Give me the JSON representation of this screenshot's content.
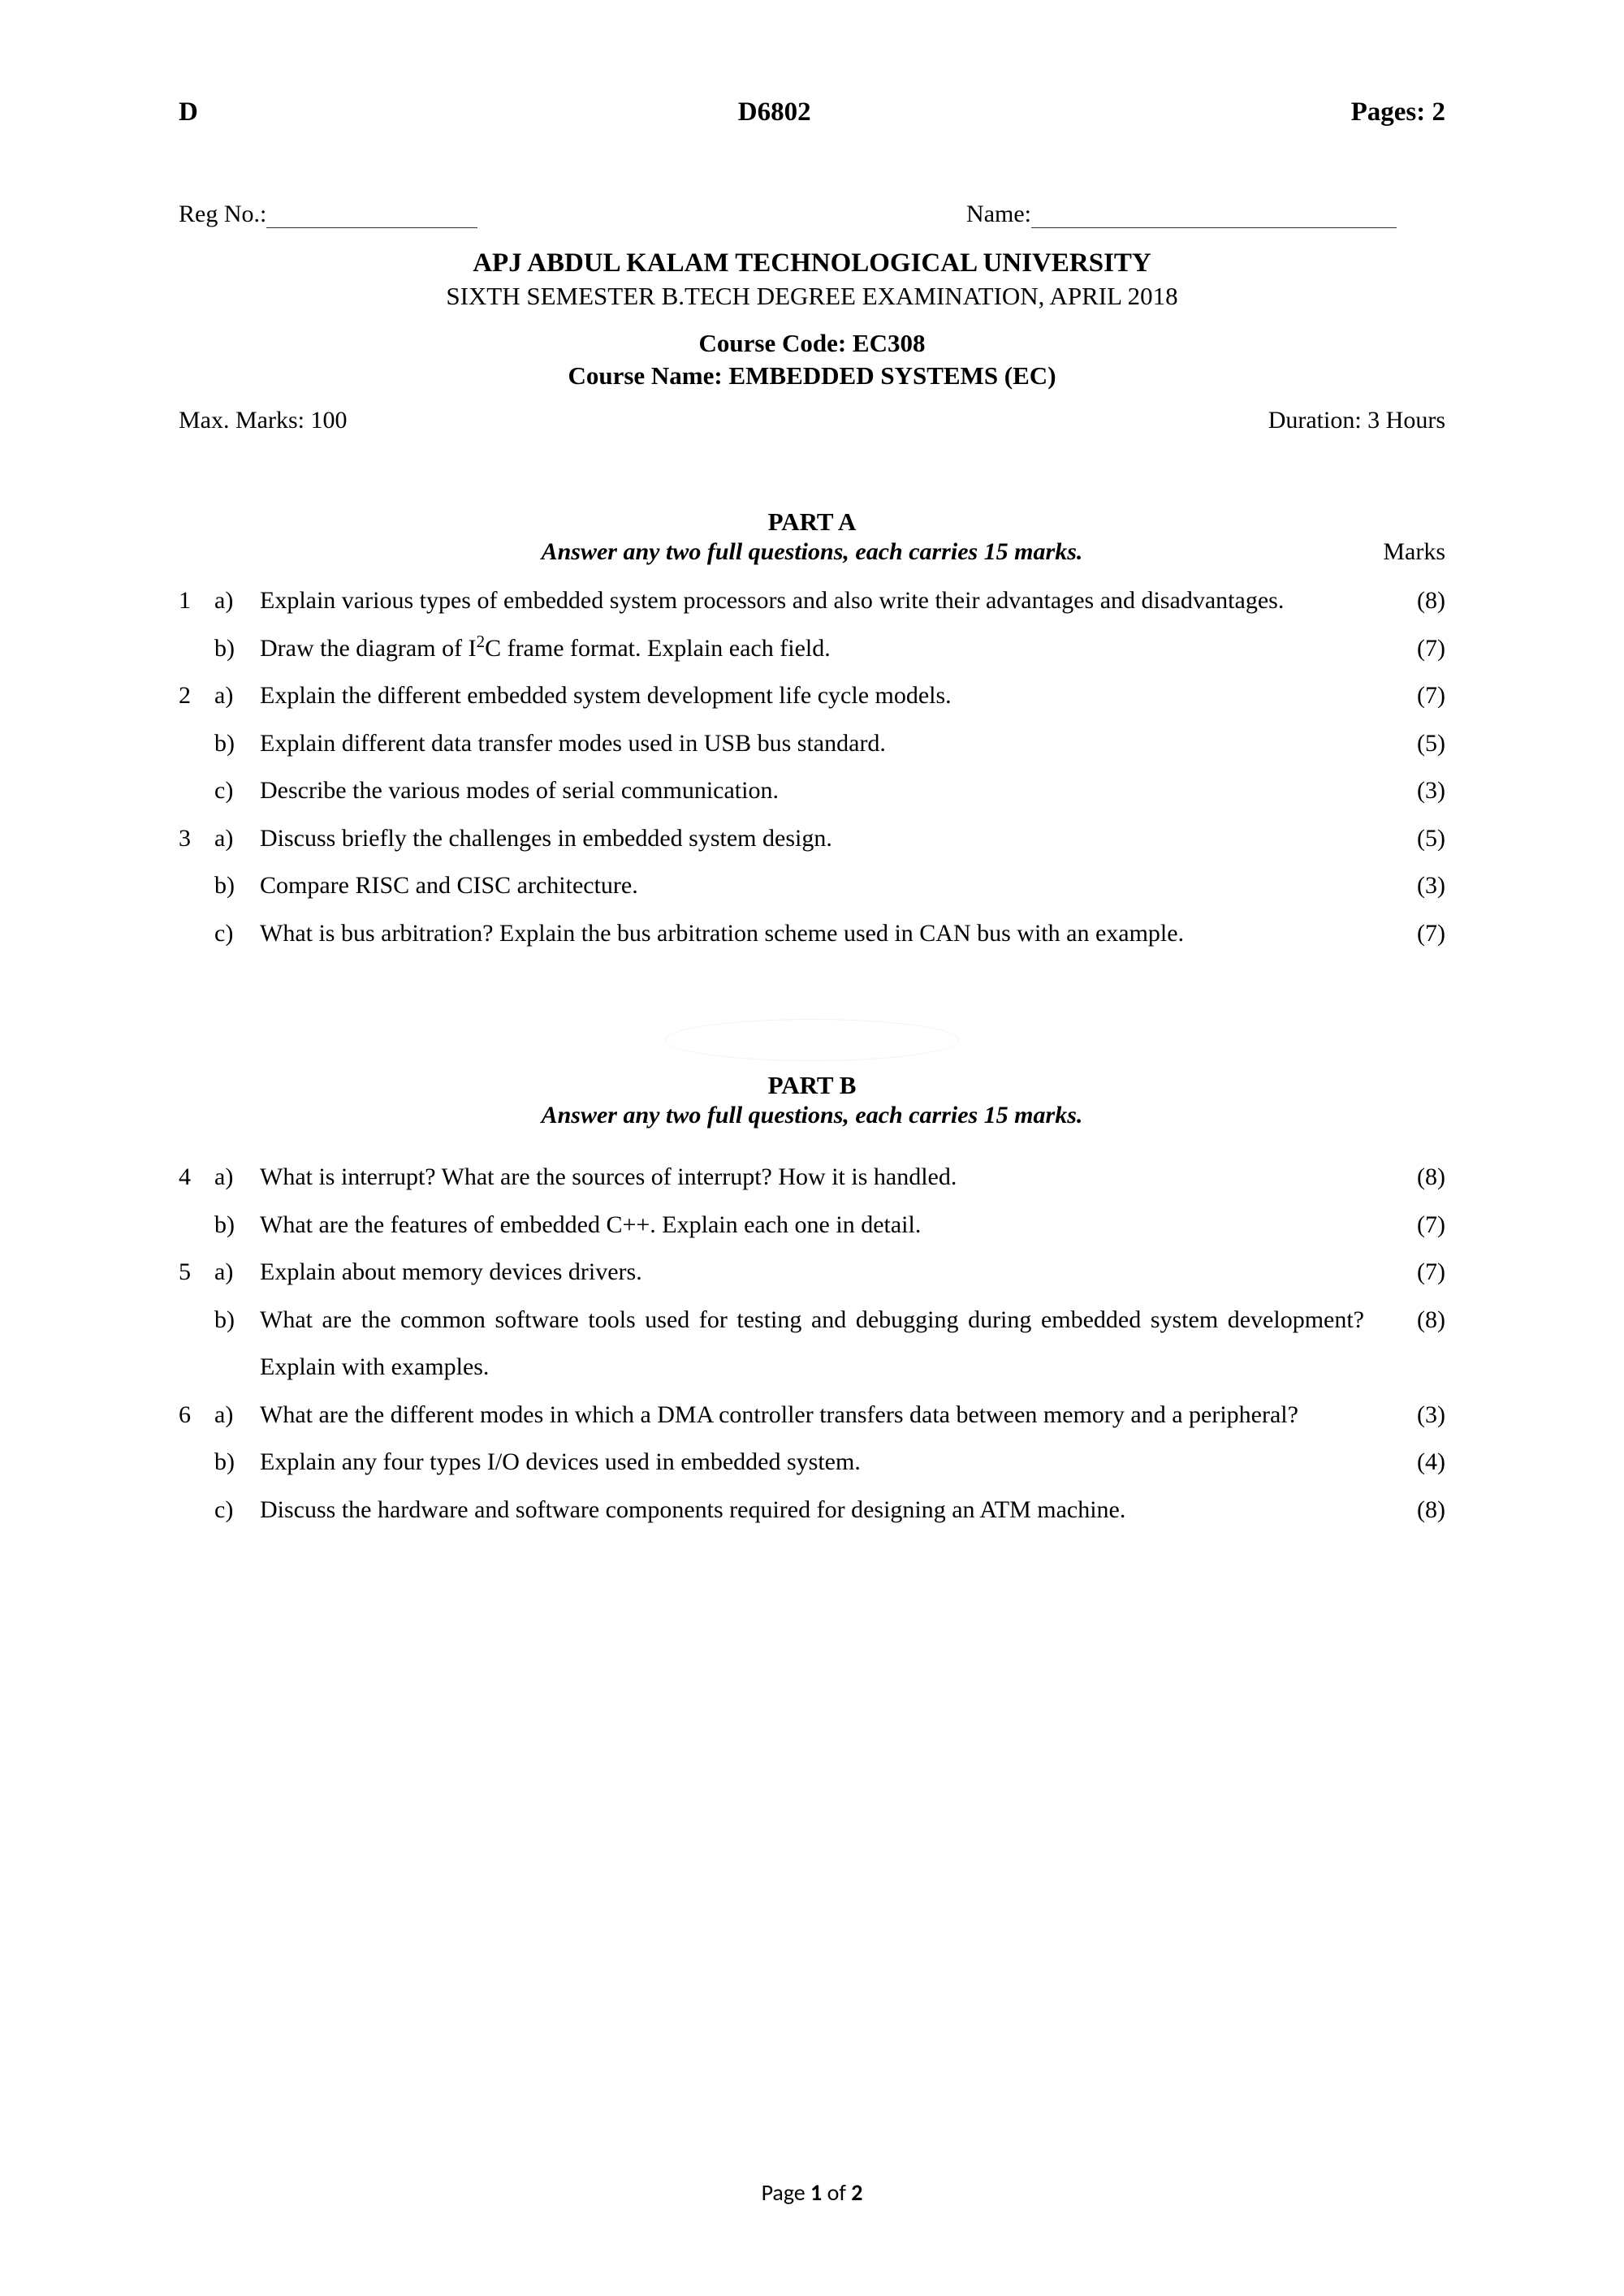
{
  "header": {
    "left": "D",
    "center": "D6802",
    "right": "Pages: 2"
  },
  "reg": {
    "reg_label": "Reg No.:",
    "name_label": "Name:"
  },
  "title": {
    "university": "APJ ABDUL KALAM TECHNOLOGICAL UNIVERSITY",
    "semester": "SIXTH SEMESTER B.TECH DEGREE EXAMINATION, APRIL 2018",
    "course_code": "Course Code: EC308",
    "course_name": "Course Name: EMBEDDED SYSTEMS (EC)"
  },
  "meta": {
    "max_marks": "Max. Marks: 100",
    "duration": "Duration: 3 Hours"
  },
  "partA": {
    "title": "PART A",
    "instr": "Answer any two full questions, each carries 15 marks.",
    "marks_label": "Marks",
    "questions": [
      {
        "num": "1",
        "subs": [
          {
            "sub": "a)",
            "text": "Explain various types of embedded system processors and also write their advantages and disadvantages.",
            "marks": "(8)"
          },
          {
            "sub": "b)",
            "text": "Draw the diagram of I²C frame format. Explain each field.",
            "marks": "(7)"
          }
        ]
      },
      {
        "num": "2",
        "subs": [
          {
            "sub": "a)",
            "text": "Explain the different embedded system development life cycle models.",
            "marks": "(7)"
          },
          {
            "sub": "b)",
            "text": "Explain different data transfer modes used in USB bus standard.",
            "marks": "(5)"
          },
          {
            "sub": "c)",
            "text": "Describe the various modes of serial communication.",
            "marks": "(3)"
          }
        ]
      },
      {
        "num": "3",
        "subs": [
          {
            "sub": "a)",
            "text": "Discuss briefly the challenges in embedded system design.",
            "marks": "(5)"
          },
          {
            "sub": "b)",
            "text": "Compare RISC and CISC architecture.",
            "marks": "(3)"
          },
          {
            "sub": "c)",
            "text": "What is bus arbitration? Explain the bus arbitration scheme used in CAN bus with an example.",
            "marks": "(7)"
          }
        ]
      }
    ]
  },
  "partB": {
    "title": "PART B",
    "instr": "Answer any two full questions, each carries 15 marks.",
    "questions": [
      {
        "num": "4",
        "subs": [
          {
            "sub": "a)",
            "text": "What is interrupt? What are the sources of interrupt? How it is handled.",
            "marks": "(8)"
          },
          {
            "sub": "b)",
            "text": "What are the features of embedded C++. Explain each one in detail.",
            "marks": "(7)"
          }
        ]
      },
      {
        "num": "5",
        "subs": [
          {
            "sub": "a)",
            "text": "Explain about memory devices drivers.",
            "marks": "(7)"
          },
          {
            "sub": "b)",
            "text": "What are the common software tools used for testing and debugging during embedded system development? Explain with examples.",
            "marks": "(8)"
          }
        ]
      },
      {
        "num": "6",
        "subs": [
          {
            "sub": "a)",
            "text": "What are the different modes in which a DMA controller transfers data between memory and a peripheral?",
            "marks": "(3)"
          },
          {
            "sub": "b)",
            "text": "Explain any four types I/O devices used in embedded system.",
            "marks": "(4)"
          },
          {
            "sub": "c)",
            "text": "Discuss the hardware and software components required for designing an ATM machine.",
            "marks": "(8)"
          }
        ]
      }
    ]
  },
  "footer": {
    "prefix": "Page ",
    "current": "1",
    "mid": " of ",
    "total": "2"
  }
}
